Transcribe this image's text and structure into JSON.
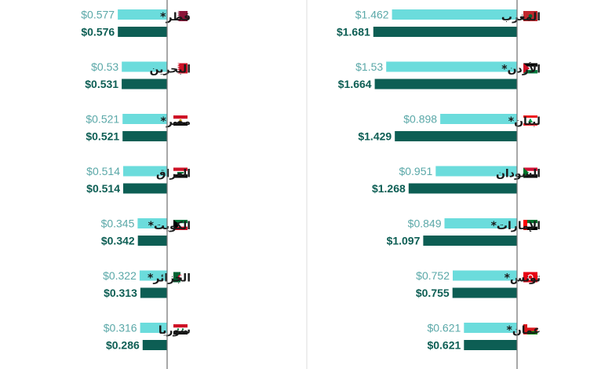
{
  "colors": {
    "prev": "#6bdcdc",
    "curr": "#0d5e54",
    "prev_text": "#5aa8a8",
    "curr_text": "#0d5e54",
    "axis": "#6e6e6e",
    "divider": "#dddddd",
    "country_text": "#1a1a1a"
  },
  "chart_data": [
    {
      "type": "bar",
      "orientation": "horizontal",
      "bar_direction": "right-to-left",
      "title": "",
      "xlabel": "",
      "ylabel": "",
      "xlim": [
        0,
        1.75
      ],
      "legend": "none",
      "grid": false,
      "categories": [
        "المغرب",
        "الأردن*",
        "لبنان*",
        "السودان",
        "الإمارات*",
        "تونس*",
        "عمان*"
      ],
      "flags": [
        "morocco-flag-icon",
        "jordan-flag-icon",
        "lebanon-flag-icon",
        "sudan-flag-icon",
        "uae-flag-icon",
        "tunisia-flag-icon",
        "oman-flag-icon"
      ],
      "series": [
        {
          "values": [
            1.462,
            1.53,
            0.898,
            0.951,
            0.849,
            0.752,
            0.621
          ],
          "labels": [
            "$1.462",
            "$1.53",
            "$0.898",
            "$0.951",
            "$0.849",
            "$0.752",
            "$0.621"
          ]
        },
        {
          "values": [
            1.681,
            1.664,
            1.429,
            1.268,
            1.097,
            0.755,
            0.621
          ],
          "labels": [
            "$1.681",
            "$1.664",
            "$1.429",
            "$1.268",
            "$1.097",
            "$0.755",
            "$0.621"
          ]
        }
      ]
    },
    {
      "type": "bar",
      "orientation": "horizontal",
      "bar_direction": "right-to-left",
      "title": "",
      "xlabel": "",
      "ylabel": "",
      "xlim": [
        0,
        1.75
      ],
      "legend": "none",
      "grid": false,
      "categories": [
        "قطر*",
        "البحرين",
        "مصر*",
        "العراق",
        "الكويت*",
        "الجزائر*",
        "سوريا"
      ],
      "flags": [
        "qatar-flag-icon",
        "bahrain-flag-icon",
        "egypt-flag-icon",
        "iraq-flag-icon",
        "kuwait-flag-icon",
        "algeria-flag-icon",
        "syria-flag-icon"
      ],
      "series": [
        {
          "values": [
            0.577,
            0.53,
            0.521,
            0.514,
            0.345,
            0.322,
            0.316
          ],
          "labels": [
            "$0.577",
            "$0.53",
            "$0.521",
            "$0.514",
            "$0.345",
            "$0.322",
            "$0.316"
          ]
        },
        {
          "values": [
            0.576,
            0.531,
            0.521,
            0.514,
            0.342,
            0.313,
            0.286
          ],
          "labels": [
            "$0.576",
            "$0.531",
            "$0.521",
            "$0.514",
            "$0.342",
            "$0.313",
            "$0.286"
          ]
        }
      ]
    }
  ]
}
